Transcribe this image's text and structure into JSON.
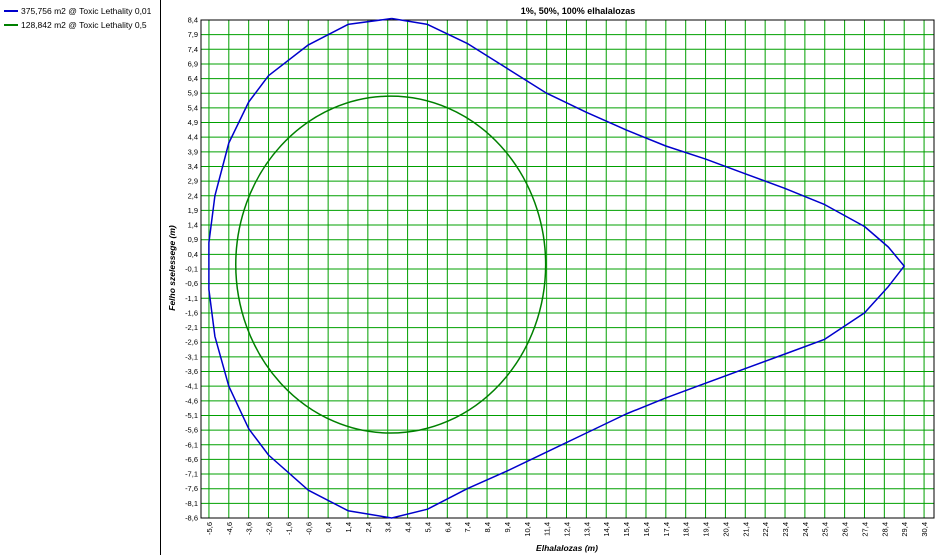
{
  "legend": {
    "items": [
      {
        "label": "375,756 m2 @ Toxic Lethality 0,01",
        "color": "#0000cc"
      },
      {
        "label": "128,842 m2 @ Toxic Lethality 0,5",
        "color": "#008000"
      }
    ]
  },
  "chart_data": {
    "type": "line",
    "title": "1%, 50%, 100% elhalalozas",
    "xlabel": "Elhalalozas (m)",
    "ylabel": "Felho szelessege (m)",
    "xlim": [
      -6.0,
      30.9
    ],
    "ylim": [
      -8.6,
      8.4
    ],
    "grid": true,
    "grid_color": "#00a000",
    "legend_position": "left-panel",
    "x_ticks": [
      "-5,6",
      "-4,6",
      "-3,6",
      "-2,6",
      "-1,6",
      "-0,6",
      "0,4",
      "1,4",
      "2,4",
      "3,4",
      "4,4",
      "5,4",
      "6,4",
      "7,4",
      "8,4",
      "9,4",
      "10,4",
      "11,4",
      "12,4",
      "13,4",
      "14,4",
      "15,4",
      "16,4",
      "17,4",
      "18,4",
      "19,4",
      "20,4",
      "21,4",
      "22,4",
      "23,4",
      "24,4",
      "25,4",
      "26,4",
      "27,4",
      "28,4",
      "29,4",
      "30,4"
    ],
    "y_ticks": [
      "8,4",
      "7,9",
      "7,4",
      "6,9",
      "6,4",
      "5,9",
      "5,4",
      "4,9",
      "4,4",
      "3,9",
      "3,4",
      "2,9",
      "2,4",
      "1,9",
      "1,4",
      "0,9",
      "0,4",
      "-0,1",
      "-0,6",
      "-1,1",
      "-1,6",
      "-2,1",
      "-2,6",
      "-3,1",
      "-3,6",
      "-4,1",
      "-4,6",
      "-5,1",
      "-5,6",
      "-6,1",
      "-6,6",
      "-7,1",
      "-7,6",
      "-8,1",
      "-8,6"
    ],
    "series": [
      {
        "name": "375,756 m2 @ Toxic Lethality 0,01",
        "color": "#0000cc",
        "points": [
          [
            3.6,
            8.45
          ],
          [
            5.4,
            8.25
          ],
          [
            7.4,
            7.6
          ],
          [
            9.4,
            6.75
          ],
          [
            11.4,
            5.9
          ],
          [
            13.4,
            5.25
          ],
          [
            15.4,
            4.65
          ],
          [
            17.4,
            4.1
          ],
          [
            19.4,
            3.65
          ],
          [
            21.4,
            3.15
          ],
          [
            23.4,
            2.65
          ],
          [
            25.4,
            2.1
          ],
          [
            27.4,
            1.35
          ],
          [
            28.6,
            0.65
          ],
          [
            29.4,
            0.0
          ],
          [
            28.6,
            -0.7
          ],
          [
            27.4,
            -1.6
          ],
          [
            25.4,
            -2.5
          ],
          [
            23.4,
            -3.0
          ],
          [
            21.4,
            -3.5
          ],
          [
            19.4,
            -4.0
          ],
          [
            17.4,
            -4.5
          ],
          [
            15.4,
            -5.05
          ],
          [
            13.4,
            -5.7
          ],
          [
            11.4,
            -6.35
          ],
          [
            9.4,
            -7.0
          ],
          [
            7.4,
            -7.6
          ],
          [
            5.4,
            -8.3
          ],
          [
            3.6,
            -8.6
          ],
          [
            1.4,
            -8.35
          ],
          [
            -0.6,
            -7.65
          ],
          [
            -2.6,
            -6.45
          ],
          [
            -3.6,
            -5.55
          ],
          [
            -4.6,
            -4.1
          ],
          [
            -5.3,
            -2.4
          ],
          [
            -5.6,
            -0.8
          ],
          [
            -5.6,
            0.8
          ],
          [
            -5.3,
            2.4
          ],
          [
            -4.6,
            4.2
          ],
          [
            -3.6,
            5.6
          ],
          [
            -2.6,
            6.5
          ],
          [
            -0.6,
            7.55
          ],
          [
            1.4,
            8.25
          ],
          [
            3.6,
            8.45
          ]
        ]
      },
      {
        "name": "128,842 m2 @ Toxic Lethality 0,5",
        "color": "#008000",
        "ellipse": {
          "cx": 3.55,
          "cy": 0.05,
          "rx": 7.8,
          "ry": 5.75
        }
      }
    ]
  }
}
